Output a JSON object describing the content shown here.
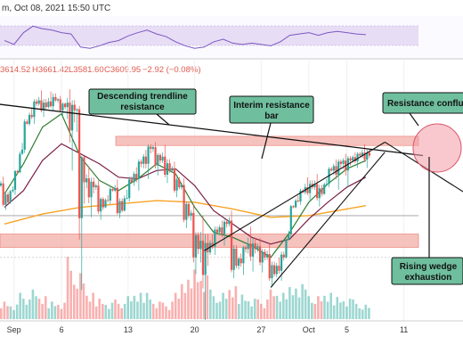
{
  "header": {
    "title_fragment": "m, Oct 08, 2021 15:50 UTC"
  },
  "ohlc_bar": {
    "open": "3614.52",
    "high": "H3661.42",
    "low": "L3581.60",
    "close": "C3609.95",
    "change": "−2.92 (−0.08%)"
  },
  "colors": {
    "up": "#26a69a",
    "down": "#ef5350",
    "ema_fast": "#2e7d32",
    "ema_mid": "#7b1f47",
    "ema_slow": "#f7a325",
    "rsi_line": "#7e57c2",
    "rsi_band": "#e7ddf5",
    "zone_fill": "#f4b3ad",
    "zone_edge": "#e8776c",
    "callout_fill": "#6fbf9e",
    "confluence": "#f29aa6"
  },
  "annotations": {
    "trendline_label": "Descending trendline resistance",
    "interim_label": "Interim resistance bar",
    "confluence_label": "Resistance confluence",
    "wedge_label": "Rising wedge exhaustion"
  },
  "chart_data": {
    "type": "candlestick",
    "title": "",
    "xlabel": "",
    "ylabel": "",
    "x_ticks": [
      "Sep",
      "6",
      "13",
      "20",
      "27",
      "Oct",
      "5",
      "11"
    ],
    "x_tick_days": [
      1,
      6,
      13,
      20,
      27,
      32,
      36,
      42
    ],
    "x_range_days": [
      0,
      44
    ],
    "y_range": [
      2700,
      4050
    ],
    "grid": true,
    "legend": "none",
    "candles_daily": [
      {
        "day": 0,
        "o": 3430,
        "h": 3470,
        "l": 3300,
        "c": 3330
      },
      {
        "day": 1,
        "o": 3330,
        "h": 3530,
        "l": 3300,
        "c": 3510
      },
      {
        "day": 2,
        "o": 3510,
        "h": 3840,
        "l": 3490,
        "c": 3800
      },
      {
        "day": 3,
        "o": 3800,
        "h": 3960,
        "l": 3760,
        "c": 3920
      },
      {
        "day": 4,
        "o": 3920,
        "h": 3980,
        "l": 3860,
        "c": 3900
      },
      {
        "day": 5,
        "o": 3900,
        "h": 4000,
        "l": 3870,
        "c": 3940
      },
      {
        "day": 6,
        "o": 3940,
        "h": 3960,
        "l": 3860,
        "c": 3900
      },
      {
        "day": 7,
        "o": 3900,
        "h": 3980,
        "l": 3640,
        "c": 3880
      },
      {
        "day": 8,
        "o": 3880,
        "h": 3900,
        "l": 3020,
        "c": 3450
      },
      {
        "day": 9,
        "o": 3450,
        "h": 3520,
        "l": 3300,
        "c": 3420
      },
      {
        "day": 10,
        "o": 3420,
        "h": 3450,
        "l": 3250,
        "c": 3300
      },
      {
        "day": 11,
        "o": 3300,
        "h": 3430,
        "l": 3280,
        "c": 3400
      },
      {
        "day": 12,
        "o": 3400,
        "h": 3450,
        "l": 3250,
        "c": 3280
      },
      {
        "day": 13,
        "o": 3280,
        "h": 3500,
        "l": 3260,
        "c": 3450
      },
      {
        "day": 14,
        "o": 3450,
        "h": 3600,
        "l": 3380,
        "c": 3560
      },
      {
        "day": 15,
        "o": 3560,
        "h": 3690,
        "l": 3470,
        "c": 3650
      },
      {
        "day": 16,
        "o": 3650,
        "h": 3680,
        "l": 3520,
        "c": 3580
      },
      {
        "day": 17,
        "o": 3580,
        "h": 3650,
        "l": 3470,
        "c": 3520
      },
      {
        "day": 18,
        "o": 3520,
        "h": 3560,
        "l": 3380,
        "c": 3420
      },
      {
        "day": 19,
        "o": 3420,
        "h": 3460,
        "l": 3200,
        "c": 3250
      },
      {
        "day": 20,
        "o": 3250,
        "h": 3300,
        "l": 2950,
        "c": 3050
      },
      {
        "day": 21,
        "o": 3050,
        "h": 3200,
        "l": 2760,
        "c": 3030
      },
      {
        "day": 22,
        "o": 3030,
        "h": 3200,
        "l": 2980,
        "c": 3150
      },
      {
        "day": 23,
        "o": 3150,
        "h": 3240,
        "l": 3080,
        "c": 3200
      },
      {
        "day": 24,
        "o": 3200,
        "h": 3260,
        "l": 2900,
        "c": 2950
      },
      {
        "day": 25,
        "o": 2950,
        "h": 3080,
        "l": 2880,
        "c": 3050
      },
      {
        "day": 26,
        "o": 3050,
        "h": 3150,
        "l": 2960,
        "c": 3050
      },
      {
        "day": 27,
        "o": 3050,
        "h": 3100,
        "l": 2940,
        "c": 3000
      },
      {
        "day": 28,
        "o": 3000,
        "h": 3060,
        "l": 2850,
        "c": 2900
      },
      {
        "day": 29,
        "o": 2900,
        "h": 3050,
        "l": 2840,
        "c": 3000
      },
      {
        "day": 30,
        "o": 3000,
        "h": 3320,
        "l": 2980,
        "c": 3300
      },
      {
        "day": 31,
        "o": 3300,
        "h": 3420,
        "l": 3280,
        "c": 3390
      },
      {
        "day": 32,
        "o": 3390,
        "h": 3480,
        "l": 3350,
        "c": 3420
      },
      {
        "day": 33,
        "o": 3420,
        "h": 3480,
        "l": 3330,
        "c": 3380
      },
      {
        "day": 34,
        "o": 3380,
        "h": 3550,
        "l": 3360,
        "c": 3520
      },
      {
        "day": 35,
        "o": 3520,
        "h": 3600,
        "l": 3430,
        "c": 3560
      },
      {
        "day": 36,
        "o": 3560,
        "h": 3620,
        "l": 3460,
        "c": 3580
      },
      {
        "day": 37,
        "o": 3580,
        "h": 3640,
        "l": 3540,
        "c": 3610
      },
      {
        "day": 38,
        "o": 3610,
        "h": 3661,
        "l": 3560,
        "c": 3610
      }
    ],
    "ema_fast": [
      {
        "day": 0,
        "v": 3380
      },
      {
        "day": 2,
        "v": 3560
      },
      {
        "day": 4,
        "v": 3780
      },
      {
        "day": 6,
        "v": 3860
      },
      {
        "day": 8,
        "v": 3600
      },
      {
        "day": 10,
        "v": 3460
      },
      {
        "day": 12,
        "v": 3400
      },
      {
        "day": 14,
        "v": 3470
      },
      {
        "day": 16,
        "v": 3560
      },
      {
        "day": 18,
        "v": 3500
      },
      {
        "day": 20,
        "v": 3300
      },
      {
        "day": 22,
        "v": 3150
      },
      {
        "day": 24,
        "v": 3120
      },
      {
        "day": 26,
        "v": 3070
      },
      {
        "day": 28,
        "v": 3000
      },
      {
        "day": 30,
        "v": 3150
      },
      {
        "day": 32,
        "v": 3330
      },
      {
        "day": 34,
        "v": 3440
      },
      {
        "day": 36,
        "v": 3530
      },
      {
        "day": 38,
        "v": 3580
      }
    ],
    "ema_mid": [
      {
        "day": 0,
        "v": 3300
      },
      {
        "day": 2,
        "v": 3400
      },
      {
        "day": 4,
        "v": 3580
      },
      {
        "day": 6,
        "v": 3680
      },
      {
        "day": 8,
        "v": 3620
      },
      {
        "day": 10,
        "v": 3560
      },
      {
        "day": 12,
        "v": 3480
      },
      {
        "day": 14,
        "v": 3470
      },
      {
        "day": 16,
        "v": 3520
      },
      {
        "day": 18,
        "v": 3530
      },
      {
        "day": 20,
        "v": 3430
      },
      {
        "day": 22,
        "v": 3280
      },
      {
        "day": 24,
        "v": 3200
      },
      {
        "day": 26,
        "v": 3120
      },
      {
        "day": 28,
        "v": 3080
      },
      {
        "day": 30,
        "v": 3110
      },
      {
        "day": 32,
        "v": 3230
      },
      {
        "day": 34,
        "v": 3330
      },
      {
        "day": 36,
        "v": 3420
      },
      {
        "day": 38,
        "v": 3480
      }
    ],
    "ema_slow": [
      {
        "day": 0,
        "v": 3200
      },
      {
        "day": 4,
        "v": 3260
      },
      {
        "day": 8,
        "v": 3300
      },
      {
        "day": 12,
        "v": 3320
      },
      {
        "day": 16,
        "v": 3340
      },
      {
        "day": 20,
        "v": 3330
      },
      {
        "day": 24,
        "v": 3290
      },
      {
        "day": 28,
        "v": 3240
      },
      {
        "day": 32,
        "v": 3250
      },
      {
        "day": 36,
        "v": 3290
      },
      {
        "day": 38,
        "v": 3310
      }
    ],
    "horizontal_levels": [
      3725,
      3670,
      3250
    ],
    "interim_band": [
      3670,
      3725
    ],
    "support_band": [
      3060,
      3140
    ],
    "descending_trendline": [
      {
        "day": -1,
        "v": 3920
      },
      {
        "day": 44,
        "v": 3610
      }
    ],
    "wedge_upper": [
      {
        "day": 21,
        "v": 3040
      },
      {
        "day": 40,
        "v": 3690
      }
    ],
    "wedge_lower": [
      {
        "day": 28,
        "v": 2820
      },
      {
        "day": 40,
        "v": 3630
      }
    ],
    "rsi": [
      48,
      42,
      60,
      70,
      66,
      64,
      60,
      58,
      38,
      36,
      40,
      45,
      48,
      55,
      60,
      64,
      58,
      54,
      46,
      40,
      36,
      38,
      46,
      50,
      44,
      42,
      44,
      42,
      40,
      46,
      56,
      58,
      60,
      56,
      60,
      62,
      60,
      58,
      57
    ],
    "volume": [
      30,
      25,
      40,
      45,
      35,
      30,
      28,
      95,
      70,
      40,
      35,
      28,
      30,
      35,
      40,
      45,
      30,
      25,
      40,
      60,
      85,
      75,
      45,
      40,
      50,
      42,
      35,
      30,
      45,
      40,
      55,
      60,
      45,
      35,
      40,
      38,
      35,
      30,
      22
    ]
  }
}
